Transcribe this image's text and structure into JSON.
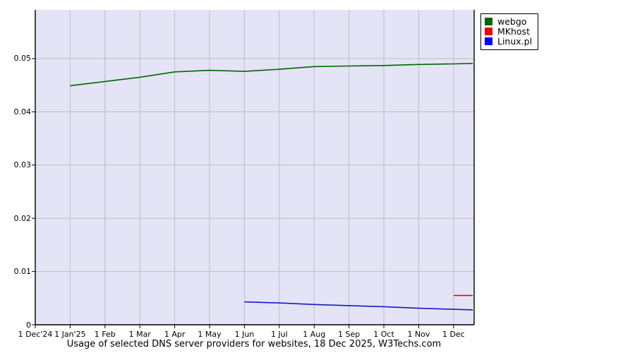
{
  "caption": "Usage of selected DNS server providers for websites, 18 Dec 2025, W3Techs.com",
  "legend": {
    "position": "top-right",
    "items": [
      {
        "label": "webgo",
        "color": "#006600"
      },
      {
        "label": "MKhost",
        "color": "#ee0000"
      },
      {
        "label": "Linux.pl",
        "color": "#0000ee"
      }
    ]
  },
  "chart_data": {
    "type": "line",
    "title": "Usage of selected DNS server providers for websites, 18 Dec 2025, W3Techs.com",
    "xlabel": "",
    "ylabel": "",
    "x_unit": "months since 1 Dec 2024",
    "x_tick_labels": [
      "1 Dec'24",
      "1 Jan'25",
      "1 Feb",
      "1 Mar",
      "1 Apr",
      "1 May",
      "1 Jun",
      "1 Jul",
      "1 Aug",
      "1 Sep",
      "1 Oct",
      "1 Nov",
      "1 Dec"
    ],
    "x_tick_positions": [
      0,
      1,
      2,
      3,
      4,
      5,
      6,
      7,
      8,
      9,
      10,
      11,
      12
    ],
    "y_tick_labels": [
      "0",
      "0.01",
      "0.02",
      "0.03",
      "0.04",
      "0.05"
    ],
    "y_tick_values": [
      0,
      0.01,
      0.02,
      0.03,
      0.04,
      0.05
    ],
    "xlim": [
      0,
      12.59
    ],
    "ylim": [
      0,
      0.05915
    ],
    "grid": true,
    "plot_bg": "#e4e4f6",
    "grid_color": "#bdbdbd",
    "axis_color": "#000000",
    "series": [
      {
        "name": "webgo",
        "color": "#006600",
        "points": [
          [
            1,
            0.0449
          ],
          [
            2,
            0.0457
          ],
          [
            3,
            0.0465
          ],
          [
            4,
            0.0475
          ],
          [
            5,
            0.0478
          ],
          [
            6,
            0.0476
          ],
          [
            7,
            0.048
          ],
          [
            8,
            0.0485
          ],
          [
            9,
            0.0486
          ],
          [
            10,
            0.0487
          ],
          [
            11,
            0.0489
          ],
          [
            12,
            0.049
          ],
          [
            12.55,
            0.0491
          ]
        ]
      },
      {
        "name": "MKhost",
        "color": "#dd0000",
        "points": [
          [
            12,
            0.0055
          ],
          [
            12.55,
            0.0055
          ]
        ]
      },
      {
        "name": "Linux.pl",
        "color": "#1818cc",
        "points": [
          [
            6,
            0.0043
          ],
          [
            7,
            0.0041
          ],
          [
            8,
            0.0038
          ],
          [
            9,
            0.0036
          ],
          [
            10,
            0.0034
          ],
          [
            11,
            0.0031
          ],
          [
            12,
            0.0029
          ],
          [
            12.55,
            0.0028
          ]
        ]
      }
    ]
  }
}
